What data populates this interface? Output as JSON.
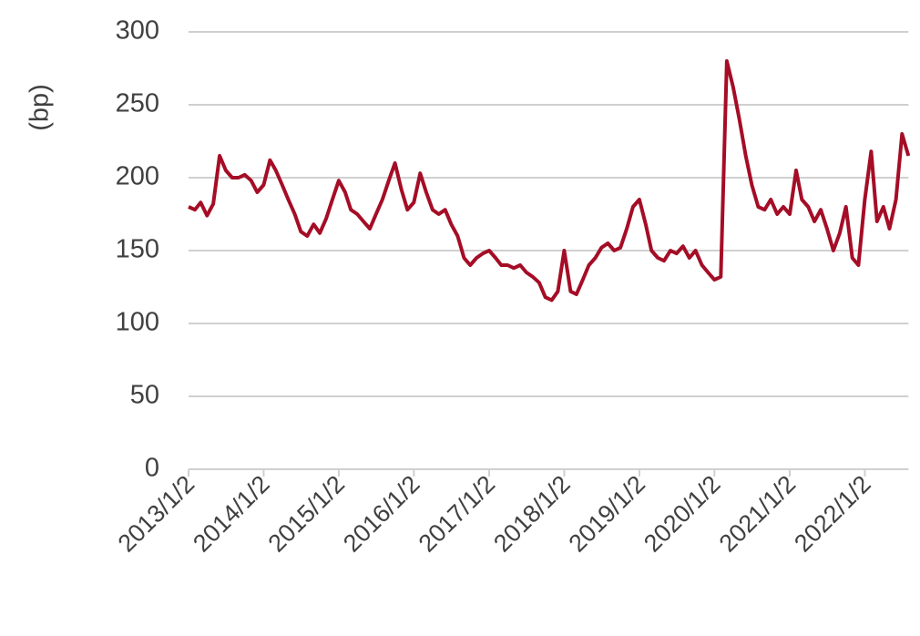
{
  "chart_data": {
    "type": "line",
    "y_label": "(bp)",
    "x": [
      "2013/1/2",
      "2013/2/2",
      "2013/3/2",
      "2013/4/2",
      "2013/5/2",
      "2013/6/2",
      "2013/7/2",
      "2013/8/2",
      "2013/9/2",
      "2013/10/2",
      "2013/11/2",
      "2013/12/2",
      "2014/1/2",
      "2014/2/2",
      "2014/3/2",
      "2014/4/2",
      "2014/5/2",
      "2014/6/2",
      "2014/7/2",
      "2014/8/2",
      "2014/9/2",
      "2014/10/2",
      "2014/11/2",
      "2014/12/2",
      "2015/1/2",
      "2015/2/2",
      "2015/3/2",
      "2015/4/2",
      "2015/5/2",
      "2015/6/2",
      "2015/7/2",
      "2015/8/2",
      "2015/9/2",
      "2015/10/2",
      "2015/11/2",
      "2015/12/2",
      "2016/1/2",
      "2016/2/2",
      "2016/3/2",
      "2016/4/2",
      "2016/5/2",
      "2016/6/2",
      "2016/7/2",
      "2016/8/2",
      "2016/9/2",
      "2016/10/2",
      "2016/11/2",
      "2016/12/2",
      "2017/1/2",
      "2017/2/2",
      "2017/3/2",
      "2017/4/2",
      "2017/5/2",
      "2017/6/2",
      "2017/7/2",
      "2017/8/2",
      "2017/9/2",
      "2017/10/2",
      "2017/11/2",
      "2017/12/2",
      "2018/1/2",
      "2018/2/2",
      "2018/3/2",
      "2018/4/2",
      "2018/5/2",
      "2018/6/2",
      "2018/7/2",
      "2018/8/2",
      "2018/9/2",
      "2018/10/2",
      "2018/11/2",
      "2018/12/2",
      "2019/1/2",
      "2019/2/2",
      "2019/3/2",
      "2019/4/2",
      "2019/5/2",
      "2019/6/2",
      "2019/7/2",
      "2019/8/2",
      "2019/9/2",
      "2019/10/2",
      "2019/11/2",
      "2019/12/2",
      "2020/1/2",
      "2020/2/2",
      "2020/3/2",
      "2020/4/2",
      "2020/5/2",
      "2020/6/2",
      "2020/7/2",
      "2020/8/2",
      "2020/9/2",
      "2020/10/2",
      "2020/11/2",
      "2020/12/2",
      "2021/1/2",
      "2021/2/2",
      "2021/3/2",
      "2021/4/2",
      "2021/5/2",
      "2021/6/2",
      "2021/7/2",
      "2021/8/2",
      "2021/9/2",
      "2021/10/2",
      "2021/11/2",
      "2021/12/2",
      "2022/1/2",
      "2022/2/2",
      "2022/3/2",
      "2022/4/2",
      "2022/5/2",
      "2022/6/2",
      "2022/7/2",
      "2022/8/2"
    ],
    "series": [
      {
        "color": "#a50d26",
        "values": [
          180,
          178,
          183,
          174,
          182,
          215,
          205,
          200,
          200,
          202,
          198,
          190,
          195,
          212,
          205,
          195,
          185,
          175,
          163,
          160,
          168,
          162,
          172,
          185,
          198,
          190,
          178,
          175,
          170,
          165,
          175,
          185,
          198,
          210,
          192,
          178,
          183,
          203,
          190,
          178,
          175,
          178,
          168,
          160,
          145,
          140,
          145,
          148,
          150,
          145,
          140,
          140,
          138,
          140,
          135,
          132,
          128,
          118,
          116,
          122,
          150,
          122,
          120,
          130,
          140,
          145,
          152,
          155,
          150,
          152,
          165,
          180,
          185,
          168,
          150,
          145,
          143,
          150,
          148,
          153,
          145,
          150,
          140,
          135,
          130,
          132,
          280,
          262,
          240,
          215,
          195,
          180,
          178,
          185,
          175,
          180,
          175,
          205,
          185,
          180,
          170,
          178,
          165,
          150,
          162,
          180,
          145,
          140,
          185,
          218,
          170,
          180,
          165,
          185,
          230,
          215
        ]
      }
    ],
    "xlim": [
      "2013/1/2",
      "2022/8/2"
    ],
    "xticks": [
      "2013/1/2",
      "2014/1/2",
      "2015/1/2",
      "2016/1/2",
      "2017/1/2",
      "2018/1/2",
      "2019/1/2",
      "2020/1/2",
      "2021/1/2",
      "2022/1/2"
    ],
    "ylim": [
      0,
      300
    ],
    "yticks": [
      0,
      50,
      100,
      150,
      200,
      250,
      300
    ],
    "grid": true
  }
}
